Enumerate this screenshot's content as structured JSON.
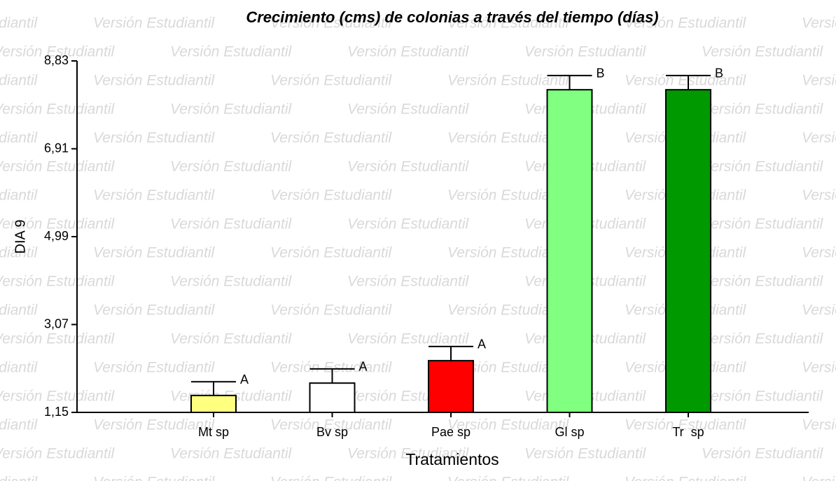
{
  "chart_data": {
    "type": "bar",
    "title": "Crecimiento (cms) de colonias a través del tiempo (días)",
    "watermark": "Versión Estudiantil",
    "x_label": "Tratamientos",
    "y_label": "DIA 9",
    "categories": [
      "Mt sp",
      "Bv sp",
      "Pae sp",
      "Gl sp",
      "Tr  sp"
    ],
    "values": [
      1.52,
      1.79,
      2.28,
      8.2,
      8.2
    ],
    "errors": [
      0.3,
      0.31,
      0.31,
      0.31,
      0.31
    ],
    "letters": [
      "A",
      "A",
      "A",
      "B",
      "B"
    ],
    "colors": [
      "#ffff80",
      "#ffffff",
      "#ff0000",
      "#80ff80",
      "#009900"
    ],
    "ylim": [
      1.15,
      8.83
    ],
    "yticks": [
      {
        "value": 1.15,
        "label": "1,15"
      },
      {
        "value": 3.07,
        "label": "3,07"
      },
      {
        "value": 4.99,
        "label": "4,99"
      },
      {
        "value": 6.91,
        "label": "6,91"
      },
      {
        "value": 8.83,
        "label": "8,83"
      }
    ]
  }
}
